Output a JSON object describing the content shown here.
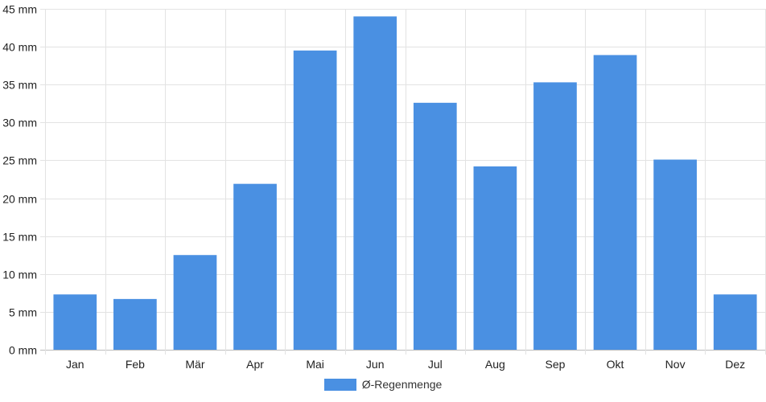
{
  "chart_data": {
    "type": "bar",
    "categories": [
      "Jan",
      "Feb",
      "Mär",
      "Apr",
      "Mai",
      "Jun",
      "Jul",
      "Aug",
      "Sep",
      "Okt",
      "Nov",
      "Dez"
    ],
    "series": [
      {
        "name": "Ø-Regenmenge",
        "color": "#4a90e2",
        "values": [
          7.3,
          6.7,
          12.5,
          21.9,
          39.5,
          44.0,
          32.6,
          24.2,
          35.3,
          38.9,
          25.1,
          7.3
        ]
      }
    ],
    "ylim": [
      0,
      45
    ],
    "yticks": [
      0,
      5,
      10,
      15,
      20,
      25,
      30,
      35,
      40,
      45
    ],
    "yunit": "mm",
    "grid": true,
    "legend_position": "bottom-center"
  }
}
